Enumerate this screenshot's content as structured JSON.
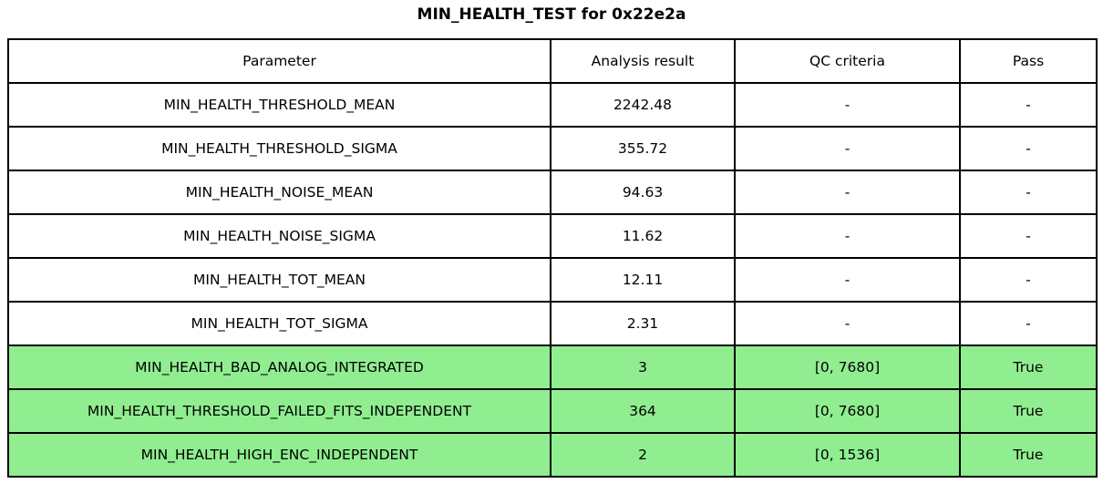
{
  "title": "MIN_HEALTH_TEST for 0x22e2a",
  "table": {
    "columns": [
      "Parameter",
      "Analysis result",
      "QC criteria",
      "Pass"
    ],
    "highlight_color": "#90ee90",
    "rows": [
      {
        "parameter": "MIN_HEALTH_THRESHOLD_MEAN",
        "result": "2242.48",
        "qc": "-",
        "pass": "-",
        "highlight": false
      },
      {
        "parameter": "MIN_HEALTH_THRESHOLD_SIGMA",
        "result": "355.72",
        "qc": "-",
        "pass": "-",
        "highlight": false
      },
      {
        "parameter": "MIN_HEALTH_NOISE_MEAN",
        "result": "94.63",
        "qc": "-",
        "pass": "-",
        "highlight": false
      },
      {
        "parameter": "MIN_HEALTH_NOISE_SIGMA",
        "result": "11.62",
        "qc": "-",
        "pass": "-",
        "highlight": false
      },
      {
        "parameter": "MIN_HEALTH_TOT_MEAN",
        "result": "12.11",
        "qc": "-",
        "pass": "-",
        "highlight": false
      },
      {
        "parameter": "MIN_HEALTH_TOT_SIGMA",
        "result": "2.31",
        "qc": "-",
        "pass": "-",
        "highlight": false
      },
      {
        "parameter": "MIN_HEALTH_BAD_ANALOG_INTEGRATED",
        "result": "3",
        "qc": "[0, 7680]",
        "pass": "True",
        "highlight": true
      },
      {
        "parameter": "MIN_HEALTH_THRESHOLD_FAILED_FITS_INDEPENDENT",
        "result": "364",
        "qc": "[0, 7680]",
        "pass": "True",
        "highlight": true
      },
      {
        "parameter": "MIN_HEALTH_HIGH_ENC_INDEPENDENT",
        "result": "2",
        "qc": "[0, 1536]",
        "pass": "True",
        "highlight": true
      }
    ]
  }
}
